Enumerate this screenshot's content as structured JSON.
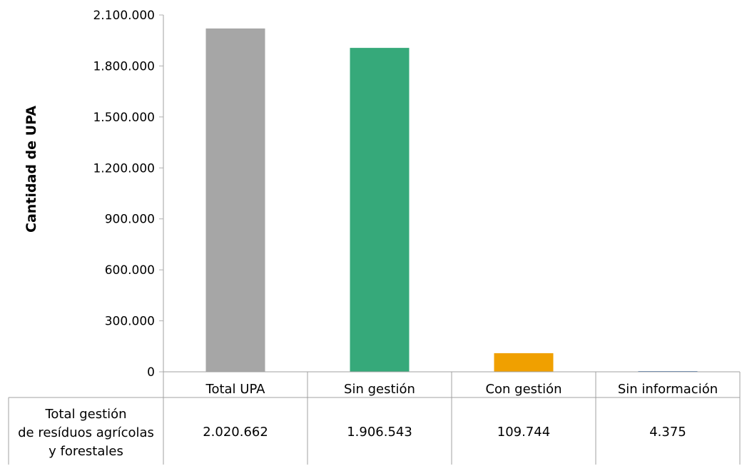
{
  "chart_data": {
    "type": "bar",
    "ylabel": "Cantidad de UPA",
    "xlabel": "",
    "ylim": [
      0,
      2100000
    ],
    "yticks": [
      0,
      300000,
      600000,
      900000,
      1200000,
      1500000,
      1800000,
      2100000
    ],
    "ytick_labels": [
      "0",
      "300.000",
      "600.000",
      "900.000",
      "1.200.000",
      "1.500.000",
      "1.800.000",
      "2.100.000"
    ],
    "categories": [
      "Total UPA",
      "Sin gestión",
      "Con gestión",
      "Sin información"
    ],
    "values": [
      2020662,
      1906543,
      109744,
      4375
    ],
    "colors": [
      "#a6a6a6",
      "#36a97a",
      "#f0a000",
      "#4f81bd"
    ],
    "grid": false,
    "table": {
      "row_label_lines": [
        "Total gestión",
        "de resíduos agrícolas",
        "y forestales"
      ],
      "cells": [
        "2.020.662",
        "1.906.543",
        "109.744",
        "4.375"
      ]
    }
  }
}
